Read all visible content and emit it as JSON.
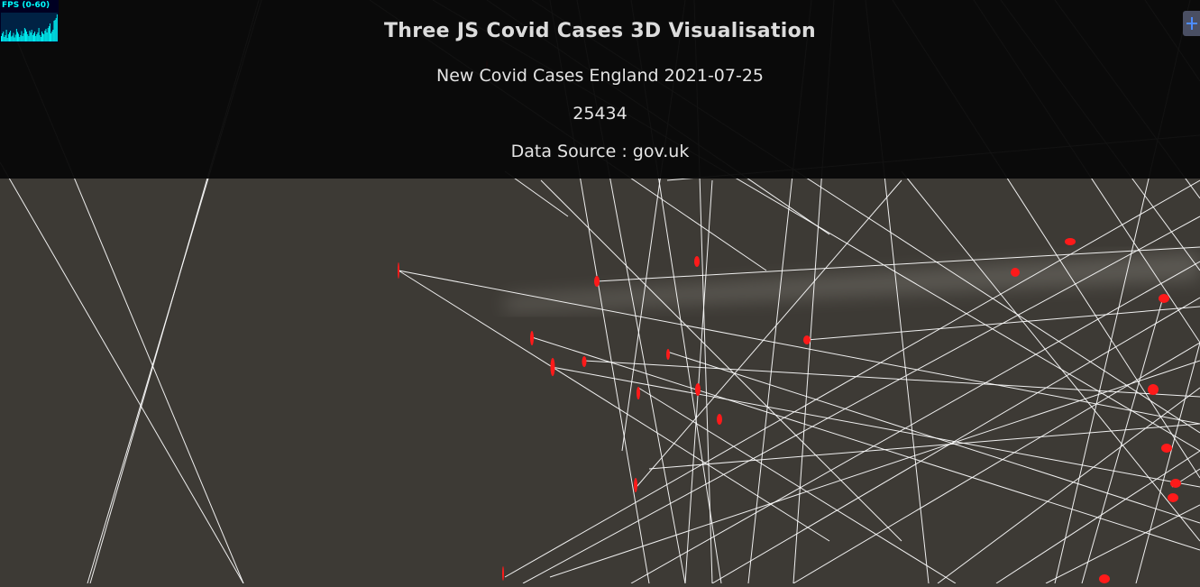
{
  "header": {
    "title": "Three JS Covid Cases 3D Visualisation",
    "subtitle": "New Covid Cases England 2021-07-25",
    "count": "25434",
    "source": "Data Source : gov.uk"
  },
  "stats": {
    "label": "FPS (0-60)",
    "history": [
      12,
      18,
      22,
      10,
      14,
      26,
      8,
      16,
      20,
      24,
      11,
      13,
      19,
      9,
      15,
      28,
      21,
      17,
      10,
      14,
      23,
      12,
      18,
      30,
      27,
      22,
      16,
      12,
      24,
      20,
      26,
      14,
      18,
      22,
      12,
      16,
      20,
      30,
      14,
      10,
      22,
      18,
      16,
      24,
      28,
      20,
      30,
      34,
      40,
      18,
      22,
      26,
      46,
      48,
      52,
      60
    ]
  },
  "colors": {
    "background": "#3d3a35",
    "line": "#ffffff",
    "marker": "#ff1a1a",
    "overlay": "#0a0a0a",
    "gui_toggle": "#4a4f63",
    "gui_icon": "#4d8cff"
  },
  "icons": {
    "gui_toggle": "plus-icon"
  }
}
